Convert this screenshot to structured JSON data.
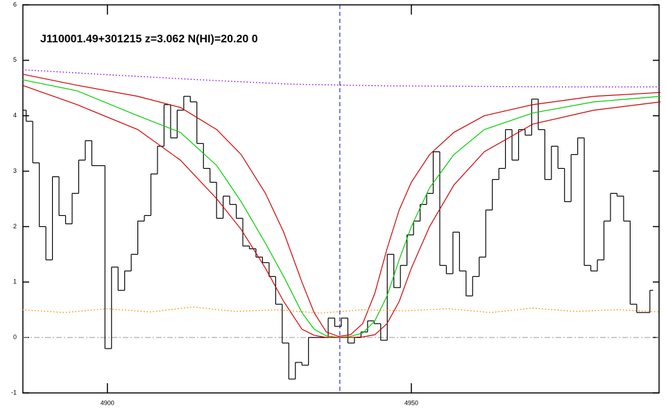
{
  "chart_data": {
    "type": "line",
    "title": "J110001.49+301215 z=3.062 N(HI)=20.20 0",
    "xlim": [
      4886.1,
      4990.75
    ],
    "ylim": [
      -1,
      6
    ],
    "xticks": [
      4900,
      4950
    ],
    "yticks": [
      -1,
      0,
      1,
      2,
      3,
      4,
      5,
      6
    ],
    "hline": 0,
    "vline": 4938.24,
    "series": [
      {
        "style": "step",
        "color": "#000000",
        "x": [
          4886.1,
          4887.18,
          4888.26,
          4889.34,
          4890.42,
          4891.5,
          4892.58,
          4893.66,
          4894.74,
          4895.82,
          4896.9,
          4897.98,
          4899.06,
          4900.14,
          4901.22,
          4902.3,
          4903.38,
          4904.46,
          4905.54,
          4906.62,
          4907.7,
          4908.78,
          4909.86,
          4910.94,
          4912.02,
          4913.1,
          4914.18,
          4915.26,
          4916.34,
          4917.42,
          4918.5,
          4919.58,
          4920.66,
          4921.74,
          4922.82,
          4923.9,
          4924.98,
          4926.06,
          4927.14,
          4928.22,
          4929.3,
          4930.38,
          4931.46,
          4932.54,
          4933.62,
          4934.7,
          4935.78,
          4936.86,
          4937.94,
          4939.02,
          4940.1,
          4941.18,
          4942.26,
          4943.34,
          4944.42,
          4945.5,
          4946.58,
          4947.66,
          4948.74,
          4949.82,
          4950.9,
          4951.98,
          4953.06,
          4954.14,
          4955.22,
          4956.3,
          4957.38,
          4958.46,
          4959.54,
          4960.62,
          4961.7,
          4962.78,
          4963.86,
          4964.94,
          4966.02,
          4967.1,
          4968.18,
          4969.26,
          4970.34,
          4971.42,
          4972.5,
          4973.58,
          4974.66,
          4975.74,
          4976.82,
          4977.9,
          4978.98,
          4980.06,
          4981.14,
          4982.22,
          4983.3,
          4984.38,
          4985.46,
          4986.54,
          4987.62,
          4988.7,
          4989.78
        ],
        "values": [
          4.1,
          3.9,
          3.15,
          2.0,
          1.4,
          2.9,
          2.2,
          2.05,
          2.6,
          3.2,
          3.55,
          3.1,
          3.1,
          -0.2,
          1.27,
          0.85,
          1.2,
          1.5,
          2.1,
          2.2,
          2.95,
          3.45,
          4.2,
          3.6,
          4.1,
          4.35,
          4.25,
          3.5,
          3.05,
          2.8,
          2.15,
          2.55,
          2.4,
          2.15,
          1.65,
          1.6,
          1.45,
          1.35,
          1.1,
          0.6,
          -0.1,
          -0.75,
          -0.45,
          -0.5,
          0.0,
          0.0,
          0.0,
          0.35,
          0.2,
          0.35,
          -0.1,
          0.0,
          0.1,
          0.3,
          0.25,
          -0.05,
          1.5,
          0.9,
          1.3,
          1.85,
          2.1,
          2.4,
          2.6,
          3.35,
          1.3,
          1.15,
          1.9,
          1.2,
          0.75,
          1.1,
          1.45,
          2.3,
          2.85,
          3.05,
          3.75,
          3.2,
          3.75,
          3.65,
          4.3,
          3.75,
          2.85,
          3.45,
          3.05,
          2.45,
          3.3,
          3.6,
          1.3,
          1.2,
          1.4,
          2.1,
          2.6,
          2.55,
          2.1,
          0.6,
          0.45,
          0.45,
          0.85
        ]
      },
      {
        "style": "solid",
        "color": "#00cc00",
        "x": [
          4886,
          4895,
          4905,
          4912,
          4918,
          4922,
          4926,
          4929,
          4932,
          4934,
          4936,
          4938,
          4940,
          4942,
          4944,
          4946,
          4948,
          4950,
          4953,
          4957,
          4962,
          4970,
          4980,
          4991
        ],
        "values": [
          4.65,
          4.45,
          4.0,
          3.7,
          3.1,
          2.45,
          1.7,
          1.1,
          0.45,
          0.15,
          0.03,
          0.0,
          0.02,
          0.08,
          0.3,
          0.75,
          1.4,
          2.0,
          2.7,
          3.3,
          3.75,
          4.05,
          4.25,
          4.35
        ]
      },
      {
        "style": "solid",
        "color": "#cc0000",
        "x": [
          4886,
          4895,
          4905,
          4912,
          4918,
          4922,
          4926,
          4929,
          4932,
          4934,
          4936,
          4938,
          4940,
          4942,
          4944,
          4946,
          4948,
          4950,
          4953,
          4957,
          4962,
          4970,
          4980,
          4991
        ],
        "values": [
          4.75,
          4.55,
          4.35,
          4.15,
          3.75,
          3.3,
          2.6,
          1.9,
          1.0,
          0.45,
          0.1,
          0.02,
          0.05,
          0.25,
          0.8,
          1.6,
          2.3,
          2.8,
          3.3,
          3.7,
          4.0,
          4.2,
          4.35,
          4.42
        ]
      },
      {
        "style": "solid",
        "color": "#cc0000",
        "x": [
          4886,
          4895,
          4905,
          4912,
          4918,
          4922,
          4926,
          4929,
          4932,
          4934,
          4936,
          4938,
          4940,
          4942,
          4944,
          4946,
          4948,
          4950,
          4953,
          4957,
          4962,
          4970,
          4980,
          4991
        ],
        "values": [
          4.55,
          4.2,
          3.75,
          3.2,
          2.5,
          1.95,
          1.25,
          0.65,
          0.15,
          0.04,
          0.0,
          0.0,
          0.0,
          0.01,
          0.05,
          0.25,
          0.65,
          1.25,
          2.0,
          2.75,
          3.35,
          3.85,
          4.1,
          4.25
        ]
      },
      {
        "style": "dotted",
        "color": "#8800ff",
        "x": [
          4886,
          4900,
          4915,
          4930,
          4945,
          4960,
          4975,
          4991
        ],
        "values": [
          4.83,
          4.74,
          4.65,
          4.57,
          4.54,
          4.53,
          4.52,
          4.52
        ]
      },
      {
        "style": "dotted",
        "color": "#ff8800",
        "x": [
          4886,
          4893,
          4900,
          4907,
          4914,
          4921,
          4928,
          4935,
          4942,
          4949,
          4956,
          4963,
          4970,
          4977,
          4984,
          4991
        ],
        "values": [
          0.5,
          0.45,
          0.52,
          0.46,
          0.55,
          0.47,
          0.5,
          0.44,
          0.5,
          0.48,
          0.52,
          0.45,
          0.53,
          0.47,
          0.5,
          0.46
        ]
      }
    ]
  }
}
